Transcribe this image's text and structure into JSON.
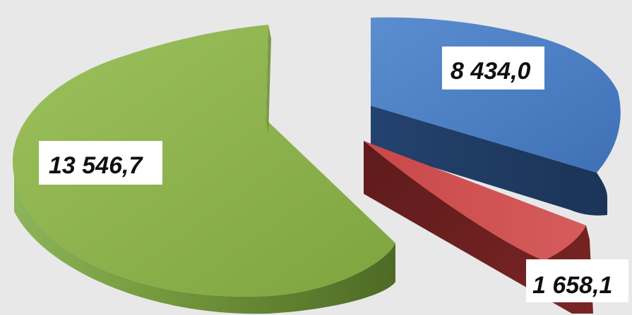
{
  "chart_data": {
    "type": "pie",
    "style": "3d-exploded",
    "slices": [
      {
        "value": 13546.7,
        "label": "13 546,7",
        "color": "#8fb34a"
      },
      {
        "value": 8434.0,
        "label": "8 434,0",
        "color": "#4a7ec2"
      },
      {
        "value": 1658.1,
        "label": "1 658,1",
        "color": "#c2484a"
      }
    ],
    "background": "#e8e8e8"
  }
}
